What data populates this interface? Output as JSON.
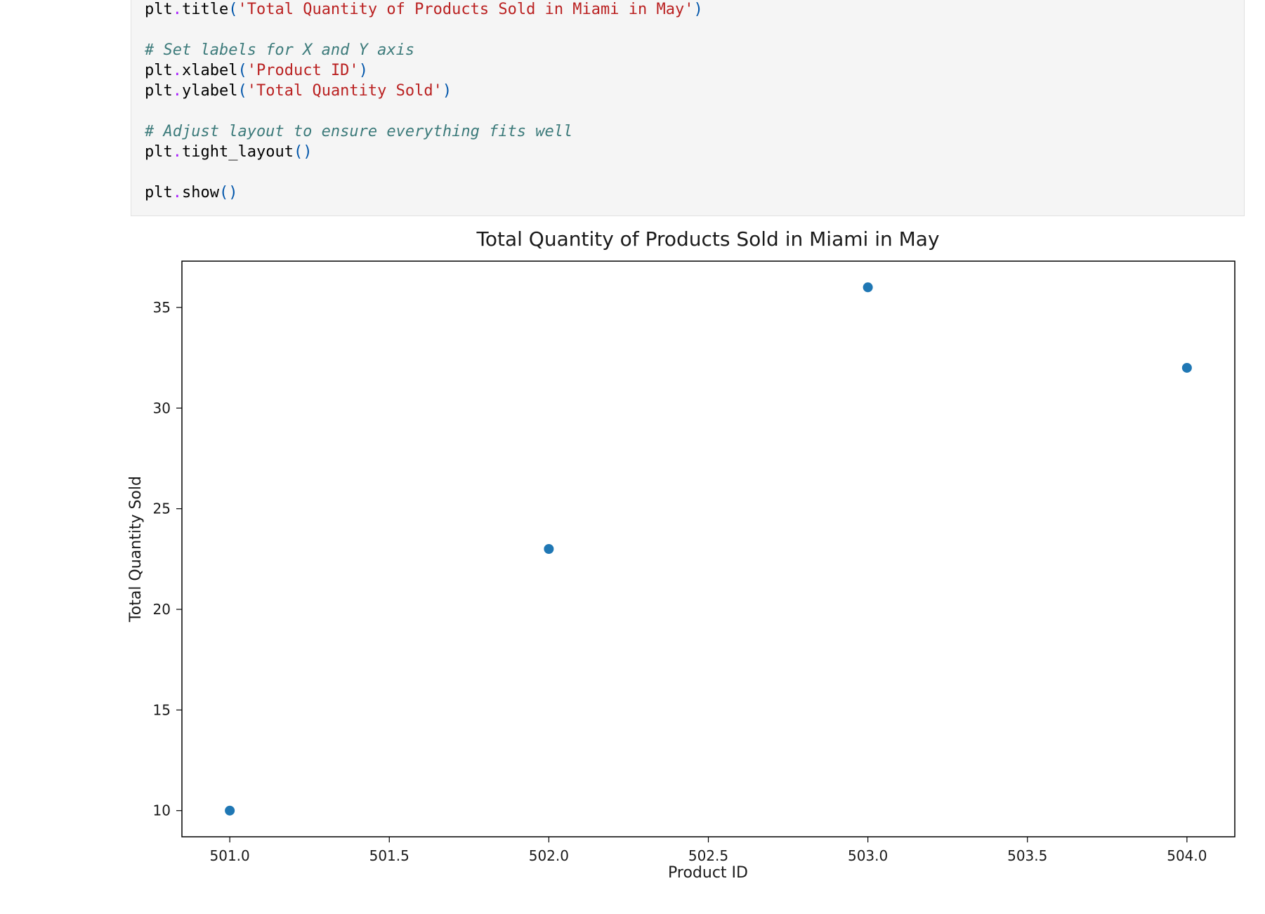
{
  "code_cell": {
    "lines": [
      {
        "tokens": [
          {
            "t": "plt",
            "k": "id"
          },
          {
            "t": ".",
            "k": "op"
          },
          {
            "t": "title",
            "k": "id"
          },
          {
            "t": "(",
            "k": "punc"
          },
          {
            "t": "'Total Quantity of Products Sold in Miami in May'",
            "k": "str"
          },
          {
            "t": ")",
            "k": "punc"
          }
        ]
      },
      {
        "tokens": []
      },
      {
        "tokens": [
          {
            "t": "# Set labels for X and Y axis",
            "k": "com"
          }
        ]
      },
      {
        "tokens": [
          {
            "t": "plt",
            "k": "id"
          },
          {
            "t": ".",
            "k": "op"
          },
          {
            "t": "xlabel",
            "k": "id"
          },
          {
            "t": "(",
            "k": "punc"
          },
          {
            "t": "'Product ID'",
            "k": "str"
          },
          {
            "t": ")",
            "k": "punc"
          }
        ]
      },
      {
        "tokens": [
          {
            "t": "plt",
            "k": "id"
          },
          {
            "t": ".",
            "k": "op"
          },
          {
            "t": "ylabel",
            "k": "id"
          },
          {
            "t": "(",
            "k": "punc"
          },
          {
            "t": "'Total Quantity Sold'",
            "k": "str"
          },
          {
            "t": ")",
            "k": "punc"
          }
        ]
      },
      {
        "tokens": []
      },
      {
        "tokens": [
          {
            "t": "# Adjust layout to ensure everything fits well",
            "k": "com"
          }
        ]
      },
      {
        "tokens": [
          {
            "t": "plt",
            "k": "id"
          },
          {
            "t": ".",
            "k": "op"
          },
          {
            "t": "tight_layout",
            "k": "id"
          },
          {
            "t": "()",
            "k": "punc"
          }
        ]
      },
      {
        "tokens": []
      },
      {
        "tokens": [
          {
            "t": "plt",
            "k": "id"
          },
          {
            "t": ".",
            "k": "op"
          },
          {
            "t": "show",
            "k": "id"
          },
          {
            "t": "()",
            "k": "punc"
          }
        ]
      }
    ]
  },
  "colors": {
    "marker": "#1f77b4",
    "string": "#ba2121",
    "comment": "#3d7b7b",
    "punctuation": "#0055aa",
    "operator": "#aa22ff"
  },
  "chart_data": {
    "type": "scatter",
    "title": "Total Quantity of Products Sold in Miami in May",
    "xlabel": "Product ID",
    "ylabel": "Total Quantity Sold",
    "x": [
      501.0,
      502.0,
      503.0,
      504.0
    ],
    "y": [
      10,
      23,
      36,
      32
    ],
    "xlim": [
      500.85,
      504.15
    ],
    "ylim": [
      8.7,
      37.3
    ],
    "xticks": [
      "501.0",
      "501.5",
      "502.0",
      "502.5",
      "503.0",
      "503.5",
      "504.0"
    ],
    "yticks": [
      "10",
      "15",
      "20",
      "25",
      "30",
      "35"
    ],
    "grid": false
  }
}
